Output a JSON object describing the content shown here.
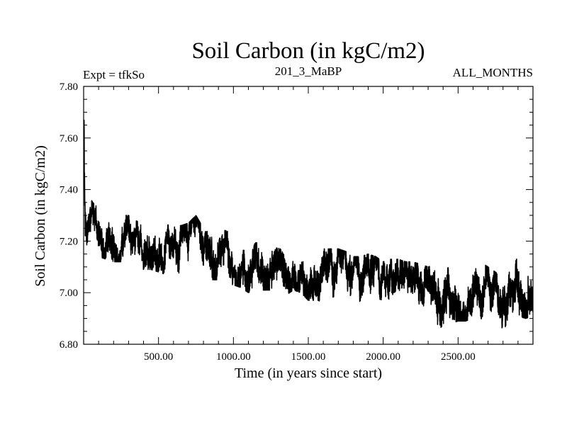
{
  "chart_data": {
    "type": "line",
    "title": "Soil Carbon (in kgC/m2)",
    "subtitle_left": "Expt = tfkSo",
    "subtitle_center": "201_3_MaBP",
    "subtitle_right": "ALL_MONTHS",
    "xlabel": "Time (in years since start)",
    "ylabel": "Soil Carbon (in kgC/m2)",
    "xlim": [
      0,
      3000
    ],
    "ylim": [
      6.8,
      7.8
    ],
    "x_ticks": [
      500,
      1000,
      1500,
      2000,
      2500
    ],
    "x_tick_labels": [
      "500.00",
      "1000.00",
      "1500.00",
      "2000.00",
      "2500.00"
    ],
    "y_ticks": [
      6.8,
      7.0,
      7.2,
      7.4,
      7.6,
      7.8
    ],
    "y_tick_labels": [
      "6.80",
      "7.00",
      "7.20",
      "7.40",
      "7.60",
      "7.80"
    ],
    "series": [
      {
        "name": "Soil Carbon",
        "color": "#000000",
        "x": [
          0,
          5,
          10,
          20,
          35,
          50,
          75,
          100,
          150,
          200,
          250,
          300,
          350,
          400,
          450,
          500,
          550,
          600,
          650,
          700,
          750,
          800,
          850,
          900,
          950,
          1000,
          1050,
          1100,
          1150,
          1200,
          1250,
          1300,
          1350,
          1400,
          1450,
          1500,
          1550,
          1600,
          1650,
          1700,
          1750,
          1800,
          1850,
          1900,
          1950,
          2000,
          2050,
          2100,
          2150,
          2200,
          2250,
          2300,
          2350,
          2400,
          2450,
          2500,
          2550,
          2600,
          2650,
          2700,
          2750,
          2800,
          2850,
          2900,
          2950,
          3000
        ],
        "mean": [
          7.68,
          7.45,
          7.22,
          7.16,
          7.22,
          7.26,
          7.26,
          7.24,
          7.22,
          7.22,
          7.21,
          7.21,
          7.19,
          7.17,
          7.19,
          7.18,
          7.16,
          7.17,
          7.16,
          7.17,
          7.18,
          7.15,
          7.16,
          7.15,
          7.15,
          7.13,
          7.12,
          7.11,
          7.12,
          7.12,
          7.12,
          7.11,
          7.1,
          7.11,
          7.1,
          7.08,
          7.08,
          7.07,
          7.07,
          7.06,
          7.06,
          7.04,
          7.04,
          7.05,
          7.04,
          7.02,
          7.03,
          7.03,
          7.02,
          7.02,
          7.01,
          7.0,
          7.0,
          6.98,
          7.0,
          7.0,
          7.0,
          7.0,
          7.01,
          7.0,
          6.97,
          6.95,
          6.99,
          7.02,
          7.0,
          7.02
        ],
        "low": [
          7.55,
          7.1,
          7.08,
          7.09,
          7.14,
          7.17,
          7.17,
          7.14,
          7.13,
          7.12,
          7.12,
          7.11,
          7.1,
          7.09,
          7.09,
          7.08,
          7.07,
          7.07,
          7.06,
          7.06,
          7.08,
          7.05,
          7.05,
          7.05,
          7.04,
          7.03,
          7.02,
          7.0,
          7.01,
          7.01,
          7.01,
          7.0,
          6.99,
          7.01,
          7.0,
          6.97,
          6.97,
          6.96,
          6.95,
          6.94,
          6.94,
          6.93,
          6.93,
          6.93,
          6.92,
          6.91,
          6.92,
          6.91,
          6.91,
          6.91,
          6.9,
          6.89,
          6.88,
          6.86,
          6.88,
          6.89,
          6.89,
          6.9,
          6.9,
          6.89,
          6.86,
          6.84,
          6.88,
          6.91,
          6.9,
          6.91
        ],
        "high": [
          7.72,
          7.68,
          7.32,
          7.26,
          7.32,
          7.36,
          7.34,
          7.33,
          7.31,
          7.31,
          7.3,
          7.3,
          7.28,
          7.26,
          7.28,
          7.28,
          7.26,
          7.27,
          7.26,
          7.27,
          7.3,
          7.25,
          7.27,
          7.25,
          7.24,
          7.23,
          7.22,
          7.21,
          7.22,
          7.23,
          7.22,
          7.21,
          7.2,
          7.21,
          7.2,
          7.19,
          7.18,
          7.17,
          7.17,
          7.17,
          7.16,
          7.14,
          7.14,
          7.15,
          7.14,
          7.12,
          7.13,
          7.13,
          7.12,
          7.12,
          7.11,
          7.1,
          7.11,
          7.09,
          7.1,
          7.11,
          7.11,
          7.12,
          7.12,
          7.1,
          7.08,
          7.06,
          7.1,
          7.16,
          7.12,
          7.14
        ]
      }
    ]
  }
}
